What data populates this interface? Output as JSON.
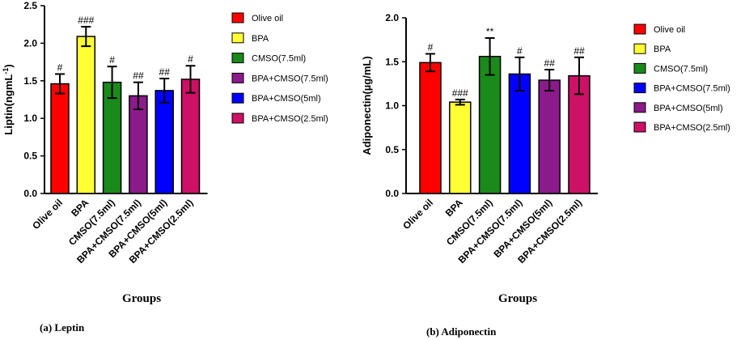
{
  "chart_data": [
    {
      "type": "bar",
      "ylabel": "Liptin(ngmL",
      "ylabel_sup": "-1",
      "ylabel_close": ")",
      "xlabel": "Groups",
      "caption": "(a) Leptin",
      "ylim": [
        0,
        2.5
      ],
      "yticks": [
        "0.0",
        "0.5",
        "1.0",
        "1.5",
        "2.0",
        "2.5"
      ],
      "categories": [
        "Olive oil",
        "BPA",
        "CMSO(7.5ml)",
        "BPA+CMSO(7.5ml)",
        "BPA+CMSO(5ml)",
        "BPA+CMSO(2.5ml)"
      ],
      "values": [
        1.46,
        2.09,
        1.48,
        1.3,
        1.37,
        1.52
      ],
      "errors": [
        0.13,
        0.13,
        0.21,
        0.18,
        0.16,
        0.18
      ],
      "significance": [
        "#",
        "###",
        "#",
        "##",
        "##",
        "#"
      ],
      "colors": [
        "#ff0000",
        "#ffff33",
        "#1a8a1a",
        "#8b1a8b",
        "#0000ff",
        "#cc1166"
      ],
      "legend": [
        {
          "label": "Olive oil",
          "color": "#ff0000"
        },
        {
          "label": "BPA",
          "color": "#ffff33"
        },
        {
          "label": "CMSO(7.5ml)",
          "color": "#1a8a1a"
        },
        {
          "label": "BPA+CMSO(7.5ml)",
          "color": "#8b1a8b"
        },
        {
          "label": "BPA+CMSO(5ml)",
          "color": "#0000ff"
        },
        {
          "label": "BPA+CMSO(2.5ml)",
          "color": "#cc1166"
        }
      ]
    },
    {
      "type": "bar",
      "ylabel": "Adiponectin(µg/mL)",
      "xlabel": "Groups",
      "caption": "(b) Adiponectin",
      "ylim": [
        0,
        2.0
      ],
      "yticks": [
        "0.0",
        "0.5",
        "1.0",
        "1.5",
        "2.0"
      ],
      "categories": [
        "Olive oil",
        "BPA",
        "CMSO(7.5ml)",
        "BPA+CMSO(7.5ml)",
        "BPA+CMSO(5ml)",
        "BPA+CMSO(2.5ml)"
      ],
      "values": [
        1.49,
        1.04,
        1.56,
        1.36,
        1.29,
        1.34
      ],
      "errors": [
        0.1,
        0.03,
        0.21,
        0.19,
        0.12,
        0.21
      ],
      "significance": [
        "#",
        "###",
        "**",
        "#",
        "##",
        "##"
      ],
      "colors": [
        "#ff0000",
        "#ffff33",
        "#1a8a1a",
        "#0000ff",
        "#8b1a8b",
        "#cc1166"
      ],
      "legend": [
        {
          "label": "Olive oil",
          "color": "#ff0000"
        },
        {
          "label": "BPA",
          "color": "#ffff33"
        },
        {
          "label": "CMSO(7.5ml)",
          "color": "#1a8a1a"
        },
        {
          "label": "BPA+CMSO(7.5ml)",
          "color": "#0000ff"
        },
        {
          "label": "BPA+CMSO(5ml)",
          "color": "#8b1a8b"
        },
        {
          "label": "BPA+CMSO(2.5ml)",
          "color": "#cc1166"
        }
      ]
    }
  ]
}
